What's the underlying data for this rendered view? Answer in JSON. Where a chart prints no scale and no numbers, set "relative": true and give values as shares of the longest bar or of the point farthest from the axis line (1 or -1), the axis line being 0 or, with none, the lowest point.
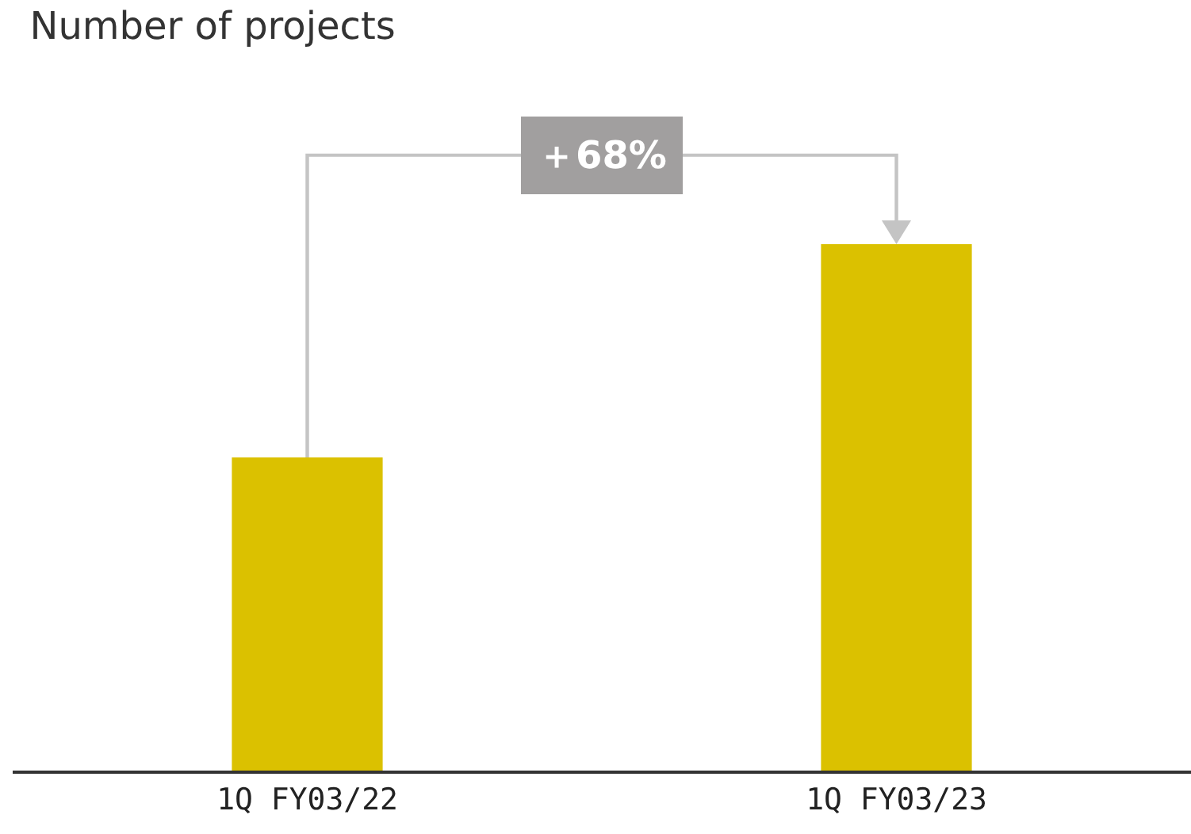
{
  "chart_data": {
    "type": "bar",
    "title": "Number of projects",
    "categories": [
      "1Q FY03/22",
      "1Q FY03/23"
    ],
    "values": [
      0.595,
      1
    ],
    "color": "#dbc100",
    "relative": true,
    "grid": false,
    "annotations": [
      "＋68%"
    ]
  }
}
